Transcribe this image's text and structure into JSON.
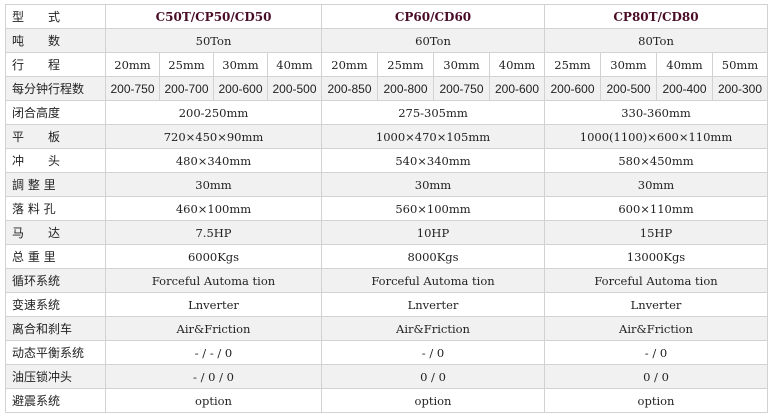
{
  "rows": [
    {
      "label": "型　　式",
      "cells": [
        {
          "text": "C50T/CP50/CD50",
          "span": 4
        },
        {
          "text": "CP60/CD60",
          "span": 4
        },
        {
          "text": "CP80T/CD80",
          "span": 4
        }
      ],
      "kind": "model"
    },
    {
      "label": "吨　　数",
      "cells": [
        {
          "text": "50Ton",
          "span": 4
        },
        {
          "text": "60Ton",
          "span": 4
        },
        {
          "text": "80Ton",
          "span": 4
        }
      ]
    },
    {
      "label": "行　　程",
      "cells": [
        {
          "text": "20mm"
        },
        {
          "text": "25mm"
        },
        {
          "text": "30mm"
        },
        {
          "text": "40mm"
        },
        {
          "text": "20mm"
        },
        {
          "text": "25mm"
        },
        {
          "text": "30mm"
        },
        {
          "text": "40mm"
        },
        {
          "text": "25mm"
        },
        {
          "text": "30mm"
        },
        {
          "text": "40mm"
        },
        {
          "text": "50mm"
        }
      ]
    },
    {
      "label": "每分钟行程数",
      "cells": [
        {
          "text": "200-750"
        },
        {
          "text": "200-700"
        },
        {
          "text": "200-600"
        },
        {
          "text": "200-500"
        },
        {
          "text": "200-850"
        },
        {
          "text": "200-800"
        },
        {
          "text": "200-750"
        },
        {
          "text": "200-600"
        },
        {
          "text": "200-600"
        },
        {
          "text": "200-500"
        },
        {
          "text": "200-400"
        },
        {
          "text": "200-300"
        }
      ],
      "kind": "num"
    },
    {
      "label": "闭合高度",
      "cells": [
        {
          "text": "200-250mm",
          "span": 4
        },
        {
          "text": "275-305mm",
          "span": 4
        },
        {
          "text": "330-360mm",
          "span": 4
        }
      ]
    },
    {
      "label": "平　　板",
      "cells": [
        {
          "text": "720×450×90mm",
          "span": 4
        },
        {
          "text": "1000×470×105mm",
          "span": 4
        },
        {
          "text": "1000(1100)×600×110mm",
          "span": 4
        }
      ]
    },
    {
      "label": "冲　　头",
      "cells": [
        {
          "text": "480×340mm",
          "span": 4
        },
        {
          "text": "540×340mm",
          "span": 4
        },
        {
          "text": "580×450mm",
          "span": 4
        }
      ]
    },
    {
      "label": "調 整 里",
      "cells": [
        {
          "text": "30mm",
          "span": 4
        },
        {
          "text": "30mm",
          "span": 4
        },
        {
          "text": "30mm",
          "span": 4
        }
      ]
    },
    {
      "label": "落 料 孔",
      "cells": [
        {
          "text": "460×100mm",
          "span": 4
        },
        {
          "text": "560×100mm",
          "span": 4
        },
        {
          "text": "600×110mm",
          "span": 4
        }
      ]
    },
    {
      "label": "马　　达",
      "cells": [
        {
          "text": "7.5HP",
          "span": 4
        },
        {
          "text": "10HP",
          "span": 4
        },
        {
          "text": "15HP",
          "span": 4
        }
      ]
    },
    {
      "label": "总 重 里",
      "cells": [
        {
          "text": "6000Kgs",
          "span": 4
        },
        {
          "text": "8000Kgs",
          "span": 4
        },
        {
          "text": "13000Kgs",
          "span": 4
        }
      ]
    },
    {
      "label": "循环系统",
      "cells": [
        {
          "text": "Forceful Automa tion",
          "span": 4
        },
        {
          "text": "Forceful Automa tion",
          "span": 4
        },
        {
          "text": "Forceful Automa tion",
          "span": 4
        }
      ]
    },
    {
      "label": "变速系统",
      "cells": [
        {
          "text": "Lnverter",
          "span": 4
        },
        {
          "text": "Lnverter",
          "span": 4
        },
        {
          "text": "Lnverter",
          "span": 4
        }
      ]
    },
    {
      "label": "离合和刹车",
      "cells": [
        {
          "text": "Air&Friction",
          "span": 4
        },
        {
          "text": "Air&Friction",
          "span": 4
        },
        {
          "text": "Air&Friction",
          "span": 4
        }
      ]
    },
    {
      "label": "动态平衡系统",
      "cells": [
        {
          "text": "- / - / 0",
          "span": 4
        },
        {
          "text": "- / 0",
          "span": 4
        },
        {
          "text": "- / 0",
          "span": 4
        }
      ]
    },
    {
      "label": "油压锁冲头",
      "cells": [
        {
          "text": "- / 0 / 0",
          "span": 4
        },
        {
          "text": "0 / 0",
          "span": 4
        },
        {
          "text": "0 / 0",
          "span": 4
        }
      ]
    },
    {
      "label": "避震系统",
      "cells": [
        {
          "text": "option",
          "span": 4
        },
        {
          "text": "option",
          "span": 4
        },
        {
          "text": "option",
          "span": 4
        }
      ]
    }
  ],
  "colors": {
    "model_text": "#4a0d28",
    "alt_row": "#f1f1f1",
    "border": "#d2d2d2"
  }
}
